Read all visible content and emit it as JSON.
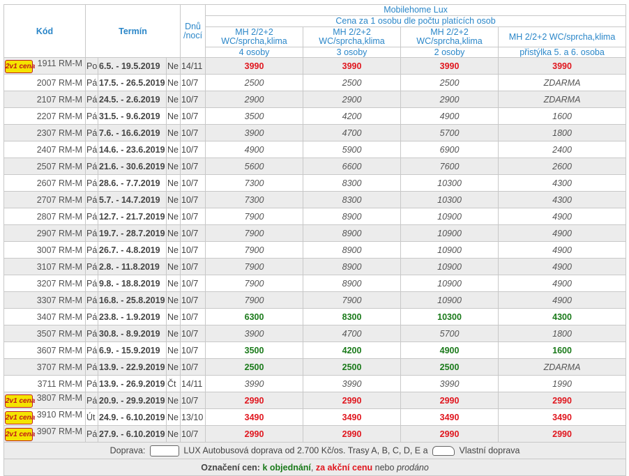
{
  "header": {
    "code_label": "Kód",
    "term_label": "Termín",
    "nights_label": "Dnů /nocí",
    "group_label": "Mobilehome Lux",
    "subgroup_label": "Cena za 1 osobu dle počtu platících osob",
    "columns": [
      {
        "type": "MH 2/2+2 WC/sprcha,klima",
        "persons": "4 osoby"
      },
      {
        "type": "MH 2/2+2 WC/sprcha,klima",
        "persons": "3 osoby"
      },
      {
        "type": "MH 2/2+2 WC/sprcha,klima",
        "persons": "2 osoby"
      },
      {
        "type": "MH 2/2+2 WC/sprcha,klima",
        "persons": "přistýlka 5. a 6. osoba"
      }
    ]
  },
  "badge_text": "2v1 cena",
  "rows": [
    {
      "badge": true,
      "code": "1911 RM-M",
      "day_from": "Po",
      "term": "6.5. - 19.5.2019",
      "day_to": "Ne",
      "nights": "14/11",
      "prices": [
        "3990",
        "3990",
        "3990",
        "3990"
      ],
      "styles": [
        "red",
        "red",
        "red",
        "red"
      ]
    },
    {
      "badge": false,
      "code": "2007 RM-M",
      "day_from": "Pá",
      "term": "17.5. - 26.5.2019",
      "day_to": "Ne",
      "nights": "10/7",
      "prices": [
        "2500",
        "2500",
        "2500",
        "ZDARMA"
      ],
      "styles": [
        "",
        "",
        "",
        ""
      ]
    },
    {
      "badge": false,
      "code": "2107 RM-M",
      "day_from": "Pá",
      "term": "24.5. - 2.6.2019",
      "day_to": "Ne",
      "nights": "10/7",
      "prices": [
        "2900",
        "2900",
        "2900",
        "ZDARMA"
      ],
      "styles": [
        "",
        "",
        "",
        ""
      ]
    },
    {
      "badge": false,
      "code": "2207 RM-M",
      "day_from": "Pá",
      "term": "31.5. - 9.6.2019",
      "day_to": "Ne",
      "nights": "10/7",
      "prices": [
        "3500",
        "4200",
        "4900",
        "1600"
      ],
      "styles": [
        "",
        "",
        "",
        ""
      ]
    },
    {
      "badge": false,
      "code": "2307 RM-M",
      "day_from": "Pá",
      "term": "7.6. - 16.6.2019",
      "day_to": "Ne",
      "nights": "10/7",
      "prices": [
        "3900",
        "4700",
        "5700",
        "1800"
      ],
      "styles": [
        "",
        "",
        "",
        ""
      ]
    },
    {
      "badge": false,
      "code": "2407 RM-M",
      "day_from": "Pá",
      "term": "14.6. - 23.6.2019",
      "day_to": "Ne",
      "nights": "10/7",
      "prices": [
        "4900",
        "5900",
        "6900",
        "2400"
      ],
      "styles": [
        "",
        "",
        "",
        ""
      ]
    },
    {
      "badge": false,
      "code": "2507 RM-M",
      "day_from": "Pá",
      "term": "21.6. - 30.6.2019",
      "day_to": "Ne",
      "nights": "10/7",
      "prices": [
        "5600",
        "6600",
        "7600",
        "2600"
      ],
      "styles": [
        "",
        "",
        "",
        ""
      ]
    },
    {
      "badge": false,
      "code": "2607 RM-M",
      "day_from": "Pá",
      "term": "28.6. - 7.7.2019",
      "day_to": "Ne",
      "nights": "10/7",
      "prices": [
        "7300",
        "8300",
        "10300",
        "4300"
      ],
      "styles": [
        "",
        "",
        "",
        ""
      ]
    },
    {
      "badge": false,
      "code": "2707 RM-M",
      "day_from": "Pá",
      "term": "5.7. - 14.7.2019",
      "day_to": "Ne",
      "nights": "10/7",
      "prices": [
        "7300",
        "8300",
        "10300",
        "4300"
      ],
      "styles": [
        "",
        "",
        "",
        ""
      ]
    },
    {
      "badge": false,
      "code": "2807 RM-M",
      "day_from": "Pá",
      "term": "12.7. - 21.7.2019",
      "day_to": "Ne",
      "nights": "10/7",
      "prices": [
        "7900",
        "8900",
        "10900",
        "4900"
      ],
      "styles": [
        "",
        "",
        "",
        ""
      ]
    },
    {
      "badge": false,
      "code": "2907 RM-M",
      "day_from": "Pá",
      "term": "19.7. - 28.7.2019",
      "day_to": "Ne",
      "nights": "10/7",
      "prices": [
        "7900",
        "8900",
        "10900",
        "4900"
      ],
      "styles": [
        "",
        "",
        "",
        ""
      ]
    },
    {
      "badge": false,
      "code": "3007 RM-M",
      "day_from": "Pá",
      "term": "26.7. - 4.8.2019",
      "day_to": "Ne",
      "nights": "10/7",
      "prices": [
        "7900",
        "8900",
        "10900",
        "4900"
      ],
      "styles": [
        "",
        "",
        "",
        ""
      ]
    },
    {
      "badge": false,
      "code": "3107 RM-M",
      "day_from": "Pá",
      "term": "2.8. - 11.8.2019",
      "day_to": "Ne",
      "nights": "10/7",
      "prices": [
        "7900",
        "8900",
        "10900",
        "4900"
      ],
      "styles": [
        "",
        "",
        "",
        ""
      ]
    },
    {
      "badge": false,
      "code": "3207 RM-M",
      "day_from": "Pá",
      "term": "9.8. - 18.8.2019",
      "day_to": "Ne",
      "nights": "10/7",
      "prices": [
        "7900",
        "8900",
        "10900",
        "4900"
      ],
      "styles": [
        "",
        "",
        "",
        ""
      ]
    },
    {
      "badge": false,
      "code": "3307 RM-M",
      "day_from": "Pá",
      "term": "16.8. - 25.8.2019",
      "day_to": "Ne",
      "nights": "10/7",
      "prices": [
        "7900",
        "7900",
        "10900",
        "4900"
      ],
      "styles": [
        "",
        "",
        "",
        ""
      ]
    },
    {
      "badge": false,
      "code": "3407 RM-M",
      "day_from": "Pá",
      "term": "23.8. - 1.9.2019",
      "day_to": "Ne",
      "nights": "10/7",
      "prices": [
        "6300",
        "8300",
        "10300",
        "4300"
      ],
      "styles": [
        "green",
        "green",
        "green",
        "green"
      ]
    },
    {
      "badge": false,
      "code": "3507 RM-M",
      "day_from": "Pá",
      "term": "30.8. - 8.9.2019",
      "day_to": "Ne",
      "nights": "10/7",
      "prices": [
        "3900",
        "4700",
        "5700",
        "1800"
      ],
      "styles": [
        "",
        "",
        "",
        ""
      ]
    },
    {
      "badge": false,
      "code": "3607 RM-M",
      "day_from": "Pá",
      "term": "6.9. - 15.9.2019",
      "day_to": "Ne",
      "nights": "10/7",
      "prices": [
        "3500",
        "4200",
        "4900",
        "1600"
      ],
      "styles": [
        "green",
        "green",
        "green",
        "green"
      ]
    },
    {
      "badge": false,
      "code": "3707 RM-M",
      "day_from": "Pá",
      "term": "13.9. - 22.9.2019",
      "day_to": "Ne",
      "nights": "10/7",
      "prices": [
        "2500",
        "2500",
        "2500",
        "ZDARMA"
      ],
      "styles": [
        "green",
        "green",
        "green",
        ""
      ]
    },
    {
      "badge": false,
      "code": "3711 RM-M",
      "day_from": "Pá",
      "term": "13.9. - 26.9.2019",
      "day_to": "Čt",
      "nights": "14/11",
      "prices": [
        "3990",
        "3990",
        "3990",
        "1990"
      ],
      "styles": [
        "",
        "",
        "",
        ""
      ]
    },
    {
      "badge": true,
      "code": "3807 RM-M",
      "day_from": "Pá",
      "term": "20.9. - 29.9.2019",
      "day_to": "Ne",
      "nights": "10/7",
      "prices": [
        "2990",
        "2990",
        "2990",
        "2990"
      ],
      "styles": [
        "red",
        "red",
        "red",
        "red"
      ]
    },
    {
      "badge": true,
      "code": "3910 RM-M",
      "day_from": "Út",
      "term": "24.9. - 6.10.2019",
      "day_to": "Ne",
      "nights": "13/10",
      "prices": [
        "3490",
        "3490",
        "3490",
        "3490"
      ],
      "styles": [
        "red",
        "red",
        "red",
        "red"
      ]
    },
    {
      "badge": true,
      "code": "3907 RM-M",
      "day_from": "Pá",
      "term": "27.9. - 6.10.2019",
      "day_to": "Ne",
      "nights": "10/7",
      "prices": [
        "2990",
        "2990",
        "2990",
        "2990"
      ],
      "styles": [
        "red",
        "red",
        "red",
        "red"
      ]
    }
  ],
  "footer": {
    "transport_prefix": "Doprava:",
    "bus_icon": "bus-icon",
    "transport_bus_text": "LUX Autobusová doprava od 2.700 Kč/os. Trasy A, B, C, D, E a",
    "car_icon": "car-icon",
    "transport_car_text": "Vlastní doprava",
    "legend_prefix": "Označení cen:",
    "legend_green": "k objednání",
    "legend_sep": ",",
    "legend_red": "za akční cenu",
    "legend_mid": "nebo",
    "legend_sold": "prodáno"
  },
  "colors": {
    "red": "#e0161e",
    "green": "#1a7a1a",
    "header_blue": "#2a86c8",
    "badge_yellow": "#f4e400"
  }
}
